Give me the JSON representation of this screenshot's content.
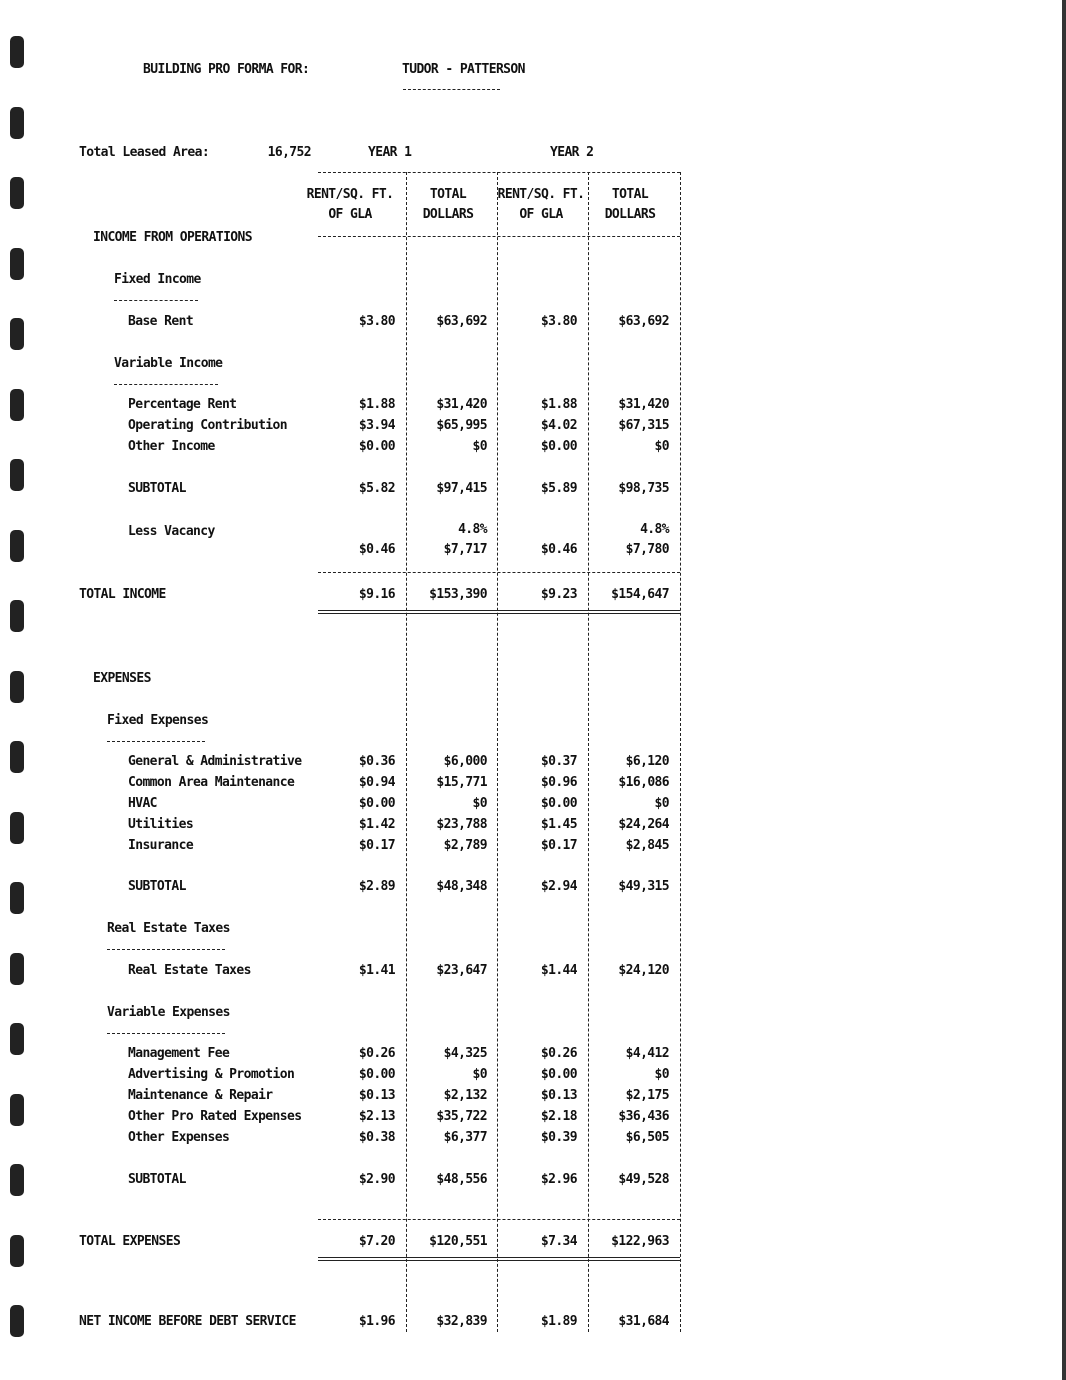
{
  "header": {
    "title": "BUILDING PRO FORMA FOR:",
    "property": "TUDOR - PATTERSON"
  },
  "leased_area": {
    "label": "Total Leased Area:",
    "value": "16,752"
  },
  "years": [
    "YEAR 1",
    "YEAR 2"
  ],
  "column_headers": [
    [
      "RENT/SQ. FT.",
      "OF GLA"
    ],
    [
      "TOTAL",
      "DOLLARS"
    ]
  ],
  "income": {
    "title": "INCOME FROM OPERATIONS",
    "fixed": {
      "title": "Fixed Income",
      "rows": [
        {
          "label": "Base Rent",
          "values": [
            "$3.80",
            "$63,692",
            "$3.80",
            "$63,692"
          ]
        }
      ]
    },
    "variable": {
      "title": "Variable Income",
      "rows": [
        {
          "label": "Percentage Rent",
          "values": [
            "$1.88",
            "$31,420",
            "$1.88",
            "$31,420"
          ]
        },
        {
          "label": "Operating Contribution",
          "values": [
            "$3.94",
            "$65,995",
            "$4.02",
            "$67,315"
          ]
        },
        {
          "label": "Other Income",
          "values": [
            "$0.00",
            "$0",
            "$0.00",
            "$0"
          ]
        }
      ]
    },
    "subtotal": {
      "label": "SUBTOTAL",
      "values": [
        "$5.82",
        "$97,415",
        "$5.89",
        "$98,735"
      ]
    },
    "vacancy": {
      "label": "Less Vacancy",
      "rates": [
        "4.8%",
        "4.8%"
      ],
      "values": [
        "$0.46",
        "$7,717",
        "$0.46",
        "$7,780"
      ]
    },
    "total": {
      "label": "TOTAL INCOME",
      "values": [
        "$9.16",
        "$153,390",
        "$9.23",
        "$154,647"
      ]
    }
  },
  "expenses": {
    "title": "EXPENSES",
    "groups": [
      {
        "title": "Fixed Expenses",
        "rows": [
          {
            "label": "General & Administrative",
            "values": [
              "$0.36",
              "$6,000",
              "$0.37",
              "$6,120"
            ]
          },
          {
            "label": "Common Area Maintenance",
            "values": [
              "$0.94",
              "$15,771",
              "$0.96",
              "$16,086"
            ]
          },
          {
            "label": "HVAC",
            "values": [
              "$0.00",
              "$0",
              "$0.00",
              "$0"
            ]
          },
          {
            "label": "Utilities",
            "values": [
              "$1.42",
              "$23,788",
              "$1.45",
              "$24,264"
            ]
          },
          {
            "label": "Insurance",
            "values": [
              "$0.17",
              "$2,789",
              "$0.17",
              "$2,845"
            ]
          }
        ],
        "subtotal": {
          "label": "SUBTOTAL",
          "values": [
            "$2.89",
            "$48,348",
            "$2.94",
            "$49,315"
          ]
        }
      },
      {
        "title": "Real Estate Taxes",
        "rows": [
          {
            "label": "Real Estate Taxes",
            "values": [
              "$1.41",
              "$23,647",
              "$1.44",
              "$24,120"
            ]
          }
        ]
      },
      {
        "title": "Variable Expenses",
        "rows": [
          {
            "label": "Management Fee",
            "values": [
              "$0.26",
              "$4,325",
              "$0.26",
              "$4,412"
            ]
          },
          {
            "label": "Advertising & Promotion",
            "values": [
              "$0.00",
              "$0",
              "$0.00",
              "$0"
            ]
          },
          {
            "label": "Maintenance & Repair",
            "values": [
              "$0.13",
              "$2,132",
              "$0.13",
              "$2,175"
            ]
          },
          {
            "label": "Other Pro Rated Expenses",
            "values": [
              "$2.13",
              "$35,722",
              "$2.18",
              "$36,436"
            ]
          },
          {
            "label": "Other Expenses",
            "values": [
              "$0.38",
              "$6,377",
              "$0.39",
              "$6,505"
            ]
          }
        ],
        "subtotal": {
          "label": "SUBTOTAL",
          "values": [
            "$2.90",
            "$48,556",
            "$2.96",
            "$49,528"
          ]
        }
      }
    ],
    "total": {
      "label": "TOTAL EXPENSES",
      "values": [
        "$7.20",
        "$120,551",
        "$7.34",
        "$122,963"
      ]
    }
  },
  "net_income": {
    "label": "NET INCOME BEFORE DEBT SERVICE",
    "values": [
      "$1.96",
      "$32,839",
      "$1.89",
      "$31,684"
    ]
  }
}
